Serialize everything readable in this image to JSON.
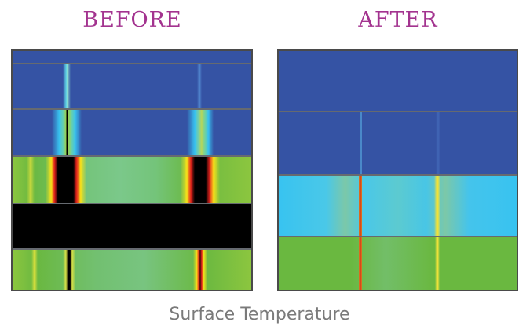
{
  "headings": {
    "before": "BEFORE",
    "after": "AFTER"
  },
  "caption": "Surface Temperature",
  "colors": {
    "heading": "#a3338f",
    "caption": "#7a7a7a",
    "cold_blue": "#3553a4",
    "cyan": "#38c3f0",
    "green": "#6ab840",
    "hot_black": "#000000",
    "hot_red": "#e3221c",
    "hot_yellow": "#f7e21a",
    "divider": "#666a70"
  }
}
